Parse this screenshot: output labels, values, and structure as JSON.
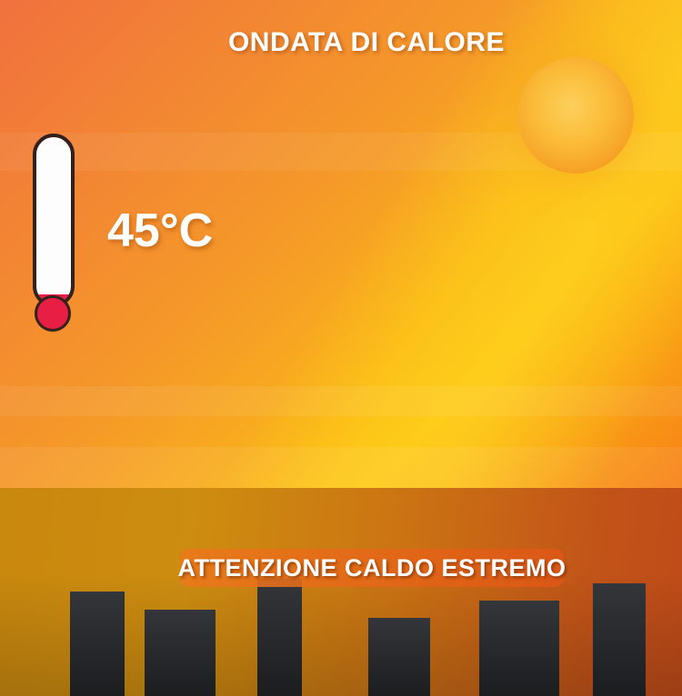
{
  "title": "ONDATA DI CALORE",
  "thermometer": {
    "reading": "45°C",
    "mercury_color": "#e91e45",
    "outline_color": "#35211b",
    "tube_color": "#fdfdfd"
  },
  "banner": {
    "label": "ATTENZIONE CALDO ESTREMO",
    "background": "#e4661c"
  },
  "icons": {
    "sun": "sun-icon",
    "thermometer": "thermometer-icon",
    "skyline": "city-buildings-silhouette"
  },
  "colors": {
    "sky_top_left_orange": "#f0713e",
    "sky_gold": "#fcbe14",
    "sky_red_orange": "#f35819",
    "light_beam_yellow": "#ffda23",
    "sun_core": "#fcd05c",
    "sun_edge": "#f18e20",
    "ground_left_gold": "#c9880e",
    "ground_right_red": "#bf4b19",
    "building_charcoal": "#222427",
    "text_white": "#ffffff"
  }
}
